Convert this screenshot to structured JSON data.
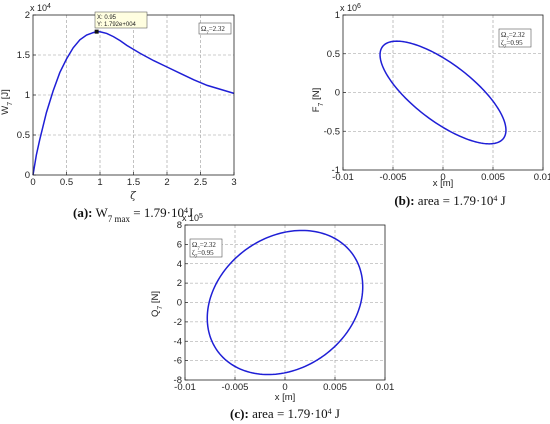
{
  "chart_data": [
    {
      "type": "line",
      "ylabel": "W_7 [J]",
      "xlabel": "ζ",
      "multiplier": "x 10^4",
      "xlim": [
        0,
        3
      ],
      "ylim": [
        0,
        2
      ],
      "xticks": [
        "0",
        "0.5",
        "1",
        "1.5",
        "2",
        "2.5",
        "3"
      ],
      "yticks": [
        "0",
        "0.5",
        "1",
        "1.5",
        "2"
      ],
      "grid": true,
      "series": [
        {
          "color": "#1f1fd6",
          "x": [
            0,
            0.05,
            0.1,
            0.2,
            0.3,
            0.4,
            0.5,
            0.6,
            0.7,
            0.8,
            0.9,
            0.95,
            1.0,
            1.1,
            1.2,
            1.3,
            1.4,
            1.5,
            1.6,
            1.8,
            2.0,
            2.2,
            2.4,
            2.6,
            2.8,
            3.0
          ],
          "y": [
            0,
            0.25,
            0.44,
            0.78,
            1.05,
            1.28,
            1.45,
            1.59,
            1.69,
            1.75,
            1.78,
            1.792,
            1.79,
            1.77,
            1.73,
            1.68,
            1.62,
            1.57,
            1.52,
            1.43,
            1.35,
            1.27,
            1.19,
            1.12,
            1.07,
            1.02
          ]
        }
      ],
      "datatip": {
        "x": 0.95,
        "y": 1.792,
        "line1": "X: 0.95",
        "line2": "Y: 1.792e+004"
      },
      "annotation": "Ω_7=2.32",
      "caption": {
        "label": "(a):",
        "text": "W7 max = 1.79·10⁴J"
      }
    },
    {
      "type": "line",
      "ylabel": "F_7 [N]",
      "xlabel": "x [m]",
      "multiplier": "x 10^6",
      "xlim": [
        -0.01,
        0.01
      ],
      "ylim": [
        -1,
        1
      ],
      "xticks": [
        "-0.01",
        "-0.005",
        "0",
        "0.005",
        "0.01"
      ],
      "yticks": [
        "-1",
        "-0.5",
        "0",
        "0.5",
        "1"
      ],
      "grid": true,
      "series": [
        {
          "color": "#1f1fd6",
          "ellipse": {
            "center_x": 0.0,
            "center_y": 0.0,
            "semi_axis_1": 0.00851,
            "semi_axis_2": 0.00333,
            "angle_deg": -46.98,
            "aspect_ratio": 100
          }
        }
      ],
      "annotation": [
        "Ω_7=2.32",
        "ζ_7=0.95"
      ],
      "caption": {
        "label": "(b):",
        "text": "area = 1.79·10⁴ J"
      }
    },
    {
      "type": "line",
      "ylabel": "Q_7 [N]",
      "xlabel": "x [m]",
      "multiplier": "x 10^5",
      "xlim": [
        -0.01,
        0.01
      ],
      "ylim": [
        -8,
        8
      ],
      "xticks": [
        "-0.01",
        "-0.005",
        "0",
        "0.005",
        "0.01"
      ],
      "yticks": [
        "-8",
        "-6",
        "-4",
        "-2",
        "0",
        "2",
        "4",
        "6",
        "8"
      ],
      "grid": true,
      "series": [
        {
          "color": "#1f1fd6",
          "ellipse": {
            "center_x": 0.0,
            "center_y": 0.0,
            "semi_axis_1": 0.00841,
            "semi_axis_2": 0.00671,
            "angle_deg": 39.26,
            "aspect_ratio": 1000
          }
        }
      ],
      "annotation": [
        "Ω_7=2.32",
        "ζ_7=0.95"
      ],
      "caption": {
        "label": "(c):",
        "text": "area = 1.79·10⁴ J"
      }
    }
  ]
}
